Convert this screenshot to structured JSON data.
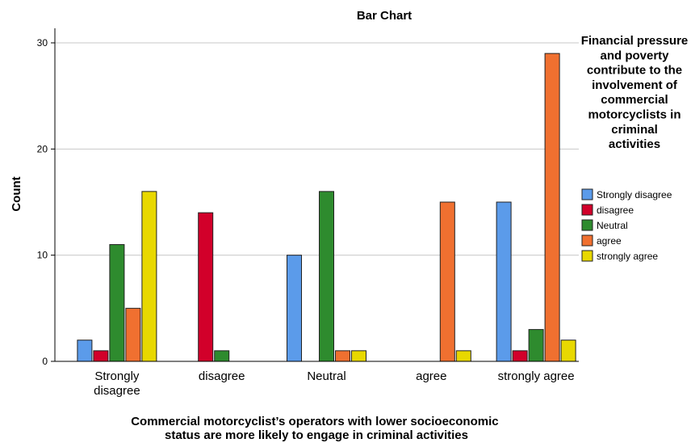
{
  "chart_data": {
    "type": "bar",
    "title": "Bar Chart",
    "xlabel": "Commercial motorcyclist’s operators with lower socioeconomic status are more likely to engage in criminal activities",
    "ylabel": "Count",
    "ylim": [
      0,
      30
    ],
    "yticks": [
      0,
      10,
      20,
      30
    ],
    "grid": true,
    "legend_placement": "right",
    "legend_title": "Financial pressure and poverty contribute to the involvement of commercial motorcyclists in criminal activities",
    "categories": [
      "Strongly disagree",
      "disagree",
      "Neutral",
      "agree",
      "strongly agree"
    ],
    "series": [
      {
        "name": "Strongly disagree",
        "color": "#5b9bea",
        "values": [
          2,
          0,
          10,
          0,
          15
        ]
      },
      {
        "name": "disagree",
        "color": "#d2002a",
        "values": [
          1,
          14,
          0,
          0,
          1
        ]
      },
      {
        "name": "Neutral",
        "color": "#2e8b2e",
        "values": [
          11,
          1,
          16,
          0,
          3
        ]
      },
      {
        "name": "agree",
        "color": "#f07030",
        "values": [
          5,
          0,
          1,
          15,
          29
        ]
      },
      {
        "name": "strongly agree",
        "color": "#e8d800",
        "values": [
          16,
          0,
          1,
          1,
          2
        ]
      }
    ]
  }
}
